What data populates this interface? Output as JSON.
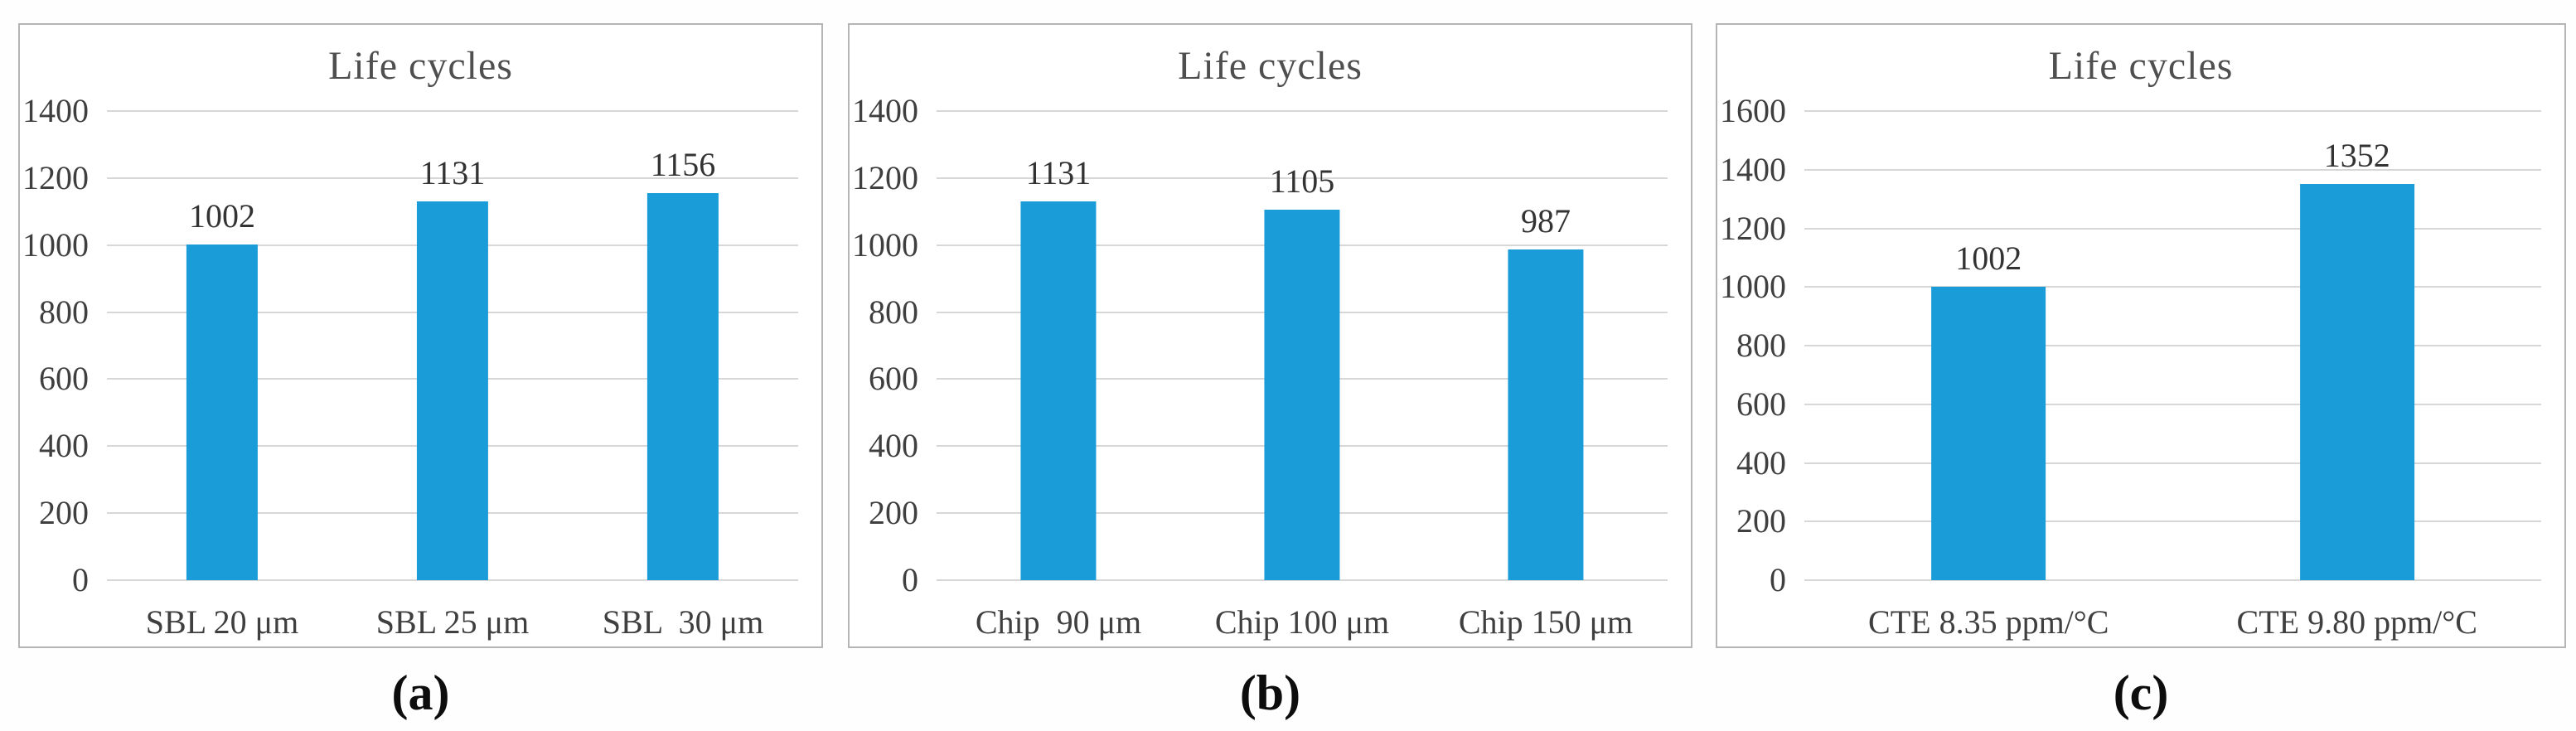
{
  "figure": {
    "background_color": "#ffffff",
    "panel_border_color": "#b5b5b5",
    "gridline_color": "#d7d7d7",
    "text_color": "#3f3f3f",
    "title_color": "#4f4f4f",
    "accent_color": "#199cd8"
  },
  "chart_data": [
    {
      "type": "bar",
      "title": "Life cycles",
      "panel_label": "(a)",
      "categories": [
        "SBL 20 μm",
        "SBL 25 μm",
        "SBL  30 μm"
      ],
      "values": [
        1002,
        1131,
        1156
      ],
      "yticks": [
        0,
        200,
        400,
        600,
        800,
        1000,
        1200,
        1400
      ],
      "ylim": [
        0,
        1400
      ],
      "xlabel": "",
      "ylabel": "",
      "grid": "horizontal",
      "legend": "none",
      "bar_color": "#199cd8"
    },
    {
      "type": "bar",
      "title": "Life cycles",
      "panel_label": "(b)",
      "categories": [
        "Chip  90 μm",
        "Chip 100 μm",
        "Chip 150 μm"
      ],
      "values": [
        1131,
        1105,
        987
      ],
      "yticks": [
        0,
        200,
        400,
        600,
        800,
        1000,
        1200,
        1400
      ],
      "ylim": [
        0,
        1400
      ],
      "xlabel": "",
      "ylabel": "",
      "grid": "horizontal",
      "legend": "none",
      "bar_color": "#199cd8"
    },
    {
      "type": "bar",
      "title": "Life cycles",
      "panel_label": "(c)",
      "categories": [
        "CTE 8.35 ppm/°C",
        "CTE 9.80 ppm/°C"
      ],
      "values": [
        1002,
        1352
      ],
      "yticks": [
        0,
        200,
        400,
        600,
        800,
        1000,
        1200,
        1400,
        1600
      ],
      "ylim": [
        0,
        1600
      ],
      "xlabel": "",
      "ylabel": "",
      "grid": "horizontal",
      "legend": "none",
      "bar_color": "#199cd8"
    }
  ]
}
